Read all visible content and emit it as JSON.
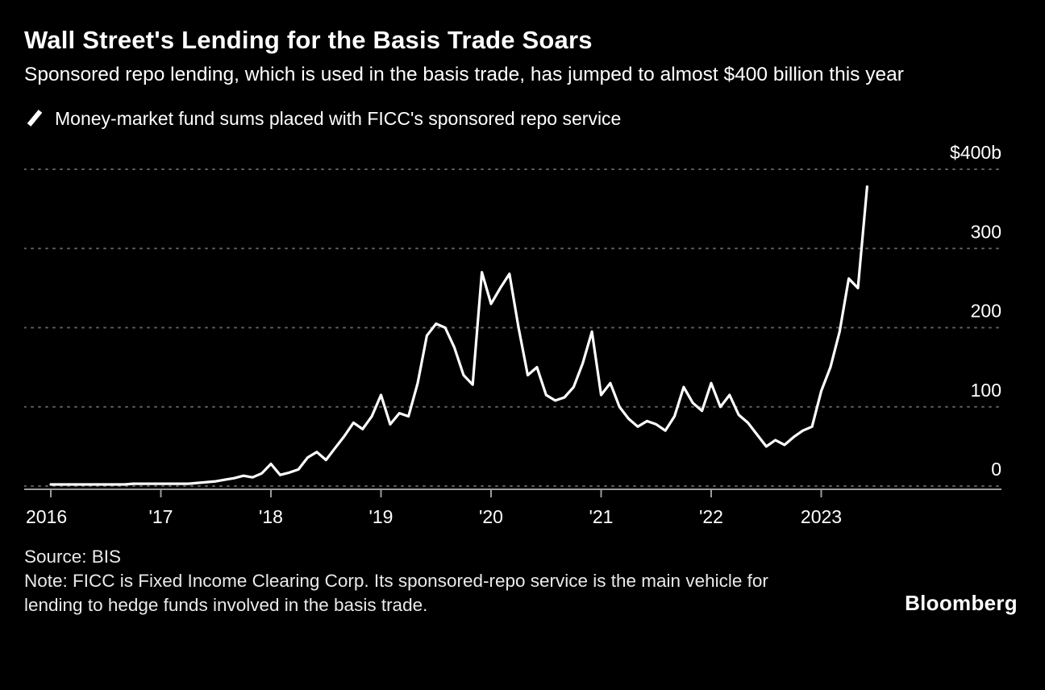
{
  "chart_data": {
    "type": "line",
    "title": "Wall Street's Lending for the Basis Trade Soars",
    "subtitle": "Sponsored repo lending, which is used in the basis trade, has jumped to almost $400 billion this year",
    "unit": "$ billions",
    "grid": "dashed-horizontal",
    "legend_position": "top-left",
    "ylim": [
      0,
      400
    ],
    "xlim": [
      2015.75,
      2024.6
    ],
    "x_ticks": [
      {
        "label": "2016",
        "year": 2016
      },
      {
        "label": "'17",
        "year": 2017
      },
      {
        "label": "'18",
        "year": 2018
      },
      {
        "label": "'19",
        "year": 2019
      },
      {
        "label": "'20",
        "year": 2020
      },
      {
        "label": "'21",
        "year": 2021
      },
      {
        "label": "'22",
        "year": 2022
      },
      {
        "label": "2023",
        "year": 2023
      }
    ],
    "y_ticks": [
      {
        "label": "$400b",
        "value": 400
      },
      {
        "label": "300",
        "value": 300
      },
      {
        "label": "200",
        "value": 200
      },
      {
        "label": "100",
        "value": 100
      },
      {
        "label": "0",
        "value": 0
      }
    ],
    "series": [
      {
        "name": "Money-market fund sums placed with FICC's sponsored repo service",
        "color": "#ffffff",
        "start_year": 2016,
        "frequency": "monthly",
        "values": [
          2,
          2,
          2,
          2,
          2,
          2,
          2,
          2,
          2,
          3,
          3,
          3,
          3,
          3,
          3,
          3,
          4,
          5,
          6,
          8,
          10,
          13,
          11,
          16,
          28,
          14,
          17,
          21,
          36,
          43,
          33,
          48,
          63,
          80,
          72,
          88,
          115,
          78,
          92,
          88,
          130,
          190,
          205,
          200,
          175,
          140,
          128,
          270,
          230,
          250,
          268,
          200,
          140,
          150,
          115,
          108,
          112,
          125,
          155,
          195,
          115,
          130,
          100,
          85,
          75,
          82,
          78,
          70,
          88,
          125,
          105,
          95,
          130,
          100,
          115,
          90,
          80,
          65,
          50,
          58,
          52,
          62,
          70,
          75,
          120,
          150,
          195,
          262,
          250,
          378
        ]
      }
    ]
  },
  "footer": {
    "source": "Source: BIS",
    "note": "Note: FICC is Fixed Income Clearing Corp. Its sponsored-repo service is the main vehicle for lending to hedge funds involved in the basis trade.",
    "logo": "Bloomberg"
  },
  "colors": {
    "background": "#000000",
    "text": "#ffffff",
    "grid": "#5e5e5e",
    "axis": "#9c9c9c",
    "line": "#ffffff"
  }
}
